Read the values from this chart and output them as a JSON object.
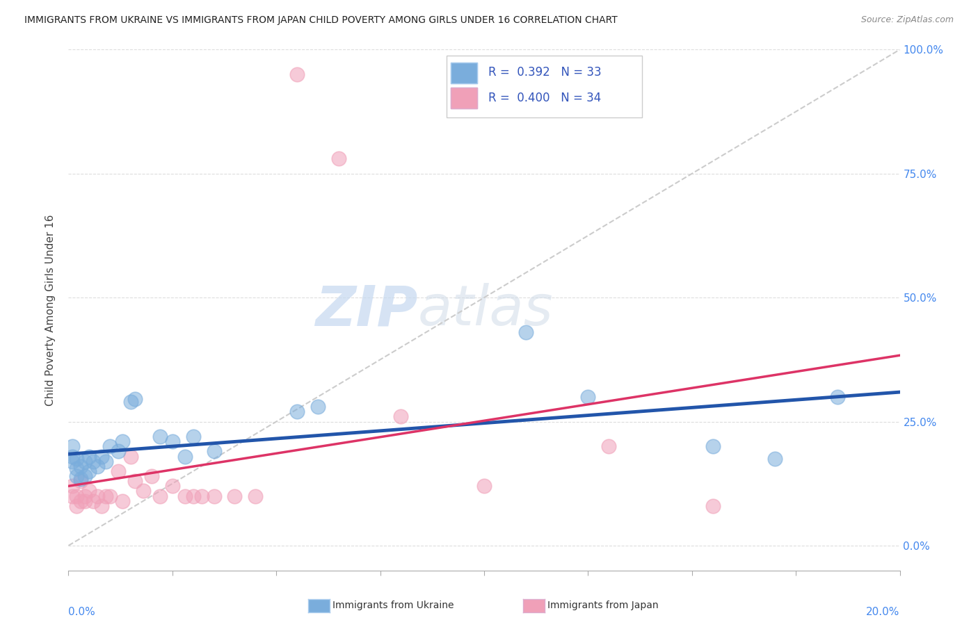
{
  "title": "IMMIGRANTS FROM UKRAINE VS IMMIGRANTS FROM JAPAN CHILD POVERTY AMONG GIRLS UNDER 16 CORRELATION CHART",
  "source": "Source: ZipAtlas.com",
  "ylabel": "Child Poverty Among Girls Under 16",
  "ukraine_color": "#7aaddc",
  "japan_color": "#f0a0b8",
  "ukraine_line_color": "#2255aa",
  "japan_line_color": "#dd3366",
  "diagonal_color": "#cccccc",
  "background_color": "#ffffff",
  "watermark_zip": "ZIP",
  "watermark_atlas": "atlas",
  "legend_r_ukraine": "R =  0.392",
  "legend_n_ukraine": "N = 33",
  "legend_r_japan": "R =  0.400",
  "legend_n_japan": "N = 34",
  "xlim": [
    0.0,
    0.2
  ],
  "ylim": [
    -0.05,
    1.0
  ],
  "yticks": [
    0.0,
    0.25,
    0.5,
    0.75,
    1.0
  ],
  "yticklabels": [
    "0.0%",
    "25.0%",
    "50.0%",
    "75.0%",
    "100.0%"
  ],
  "ukraine_x": [
    0.001,
    0.001,
    0.001,
    0.002,
    0.002,
    0.002,
    0.003,
    0.003,
    0.004,
    0.004,
    0.005,
    0.005,
    0.006,
    0.007,
    0.008,
    0.009,
    0.01,
    0.012,
    0.013,
    0.015,
    0.016,
    0.022,
    0.025,
    0.028,
    0.03,
    0.035,
    0.055,
    0.06,
    0.11,
    0.125,
    0.155,
    0.17,
    0.185
  ],
  "ukraine_y": [
    0.18,
    0.2,
    0.17,
    0.155,
    0.175,
    0.14,
    0.135,
    0.16,
    0.14,
    0.17,
    0.15,
    0.18,
    0.17,
    0.16,
    0.18,
    0.17,
    0.2,
    0.19,
    0.21,
    0.29,
    0.295,
    0.22,
    0.21,
    0.18,
    0.22,
    0.19,
    0.27,
    0.28,
    0.43,
    0.3,
    0.2,
    0.175,
    0.3
  ],
  "japan_x": [
    0.001,
    0.001,
    0.002,
    0.002,
    0.003,
    0.003,
    0.004,
    0.004,
    0.005,
    0.006,
    0.007,
    0.008,
    0.009,
    0.01,
    0.012,
    0.013,
    0.015,
    0.016,
    0.018,
    0.02,
    0.022,
    0.025,
    0.028,
    0.03,
    0.032,
    0.035,
    0.04,
    0.045,
    0.055,
    0.065,
    0.08,
    0.1,
    0.13,
    0.155
  ],
  "japan_y": [
    0.1,
    0.12,
    0.1,
    0.08,
    0.09,
    0.13,
    0.09,
    0.1,
    0.11,
    0.09,
    0.1,
    0.08,
    0.1,
    0.1,
    0.15,
    0.09,
    0.18,
    0.13,
    0.11,
    0.14,
    0.1,
    0.12,
    0.1,
    0.1,
    0.1,
    0.1,
    0.1,
    0.1,
    0.95,
    0.78,
    0.26,
    0.12,
    0.2,
    0.08
  ]
}
